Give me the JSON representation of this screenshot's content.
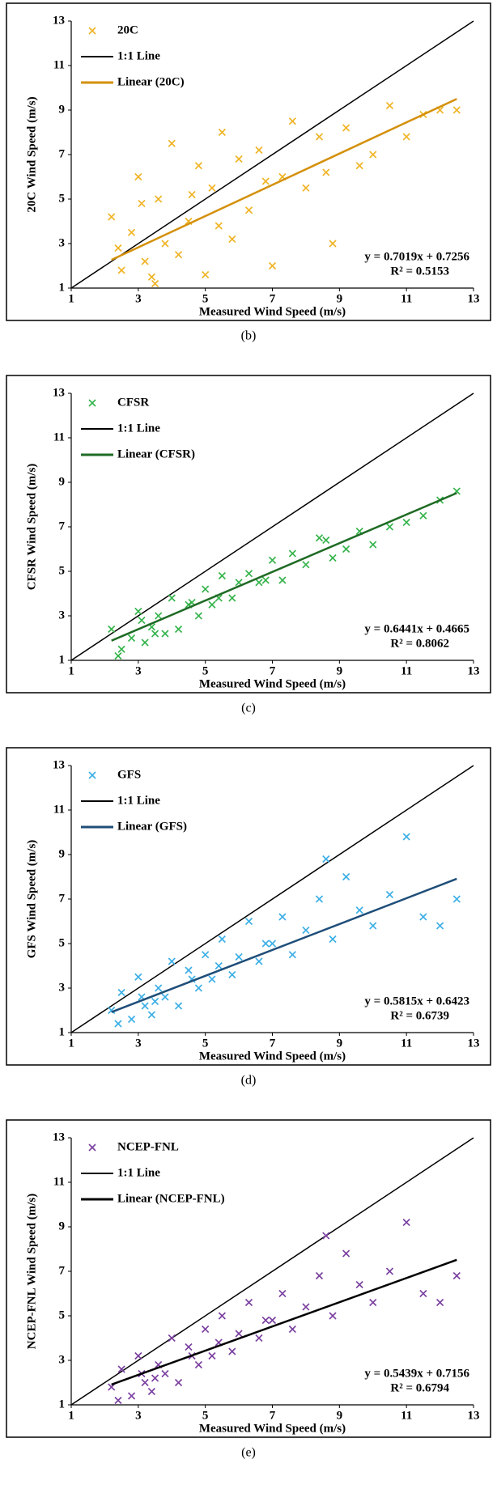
{
  "chart_data": [
    {
      "type": "scatter",
      "caption": "(b)",
      "x_label": "Measured Wind Speed (m/s)",
      "y_label": "20C Wind Speed (m/s)",
      "xlim": [
        1,
        13
      ],
      "ylim": [
        1,
        13
      ],
      "xticks": [
        1,
        3,
        5,
        7,
        9,
        11,
        13
      ],
      "yticks": [
        1,
        3,
        5,
        7,
        9,
        11,
        13
      ],
      "series": [
        {
          "name": "20C",
          "color": "#f0b323",
          "x": [
            2.2,
            2.5,
            2.8,
            3.0,
            3.2,
            3.4,
            3.6,
            3.8,
            4.0,
            4.2,
            4.5,
            4.8,
            5.0,
            5.2,
            5.5,
            5.8,
            6.0,
            6.3,
            6.6,
            7.0,
            7.3,
            7.6,
            8.0,
            8.4,
            8.8,
            9.2,
            9.6,
            10.0,
            10.5,
            11.0,
            11.5,
            12.0,
            12.5,
            2.4,
            3.1,
            4.6,
            6.8,
            8.6,
            3.5,
            5.4
          ],
          "values": [
            4.2,
            1.8,
            3.5,
            6.0,
            2.2,
            1.5,
            5.0,
            3.0,
            7.5,
            2.5,
            4.0,
            6.5,
            1.6,
            5.5,
            8.0,
            3.2,
            6.8,
            4.5,
            7.2,
            2.0,
            6.0,
            8.5,
            5.5,
            7.8,
            3.0,
            8.2,
            6.5,
            7.0,
            9.2,
            7.8,
            8.8,
            9.0,
            9.0,
            2.8,
            4.8,
            5.2,
            5.8,
            6.2,
            1.2,
            3.8
          ]
        }
      ],
      "one_to_one": {
        "name": "1:1 Line",
        "color": "#000000"
      },
      "trendline": {
        "name": "Linear (20C)",
        "color": "#d4900a",
        "slope": 0.7019,
        "intercept": 0.7256
      },
      "equation": "y = 0.7019x + 0.7256",
      "r2_label": "R² = 0.5153"
    },
    {
      "type": "scatter",
      "caption": "(c)",
      "x_label": "Measured Wind Speed (m/s)",
      "y_label": "CFSR Wind Speed (m/s)",
      "xlim": [
        1,
        13
      ],
      "ylim": [
        1,
        13
      ],
      "xticks": [
        1,
        3,
        5,
        7,
        9,
        11,
        13
      ],
      "yticks": [
        1,
        3,
        5,
        7,
        9,
        11,
        13
      ],
      "series": [
        {
          "name": "CFSR",
          "color": "#34b34a",
          "x": [
            2.2,
            2.5,
            2.8,
            3.0,
            3.2,
            3.4,
            3.6,
            3.8,
            4.0,
            4.2,
            4.5,
            4.8,
            5.0,
            5.2,
            5.5,
            5.8,
            6.0,
            6.3,
            6.6,
            7.0,
            7.3,
            7.6,
            8.0,
            8.4,
            8.8,
            9.2,
            9.6,
            10.0,
            10.5,
            11.0,
            11.5,
            12.0,
            12.5,
            2.4,
            3.1,
            4.6,
            6.8,
            8.6,
            3.5,
            5.4
          ],
          "values": [
            2.4,
            1.5,
            2.0,
            3.2,
            1.8,
            2.5,
            3.0,
            2.2,
            3.8,
            2.4,
            3.5,
            3.0,
            4.2,
            3.5,
            4.8,
            3.8,
            4.5,
            4.9,
            4.5,
            5.5,
            4.6,
            5.8,
            5.3,
            6.5,
            5.6,
            6.0,
            6.8,
            6.2,
            7.0,
            7.2,
            7.5,
            8.2,
            8.6,
            1.2,
            2.8,
            3.6,
            4.6,
            6.4,
            2.2,
            3.8
          ]
        }
      ],
      "one_to_one": {
        "name": "1:1 Line",
        "color": "#000000"
      },
      "trendline": {
        "name": "Linear (CFSR)",
        "color": "#1f6b25",
        "slope": 0.6441,
        "intercept": 0.4665
      },
      "equation": "y = 0.6441x + 0.4665",
      "r2_label": "R² = 0.8062"
    },
    {
      "type": "scatter",
      "caption": "(d)",
      "x_label": "Measured Wind Speed (m/s)",
      "y_label": "GFS Wind Speed (m/s)",
      "xlim": [
        1,
        13
      ],
      "ylim": [
        1,
        13
      ],
      "xticks": [
        1,
        3,
        5,
        7,
        9,
        11,
        13
      ],
      "yticks": [
        1,
        3,
        5,
        7,
        9,
        11,
        13
      ],
      "series": [
        {
          "name": "GFS",
          "color": "#3aaee6",
          "x": [
            2.2,
            2.5,
            2.8,
            3.0,
            3.2,
            3.4,
            3.6,
            3.8,
            4.0,
            4.2,
            4.5,
            4.8,
            5.0,
            5.2,
            5.5,
            5.8,
            6.0,
            6.3,
            6.6,
            7.0,
            7.3,
            7.6,
            8.0,
            8.4,
            8.8,
            9.2,
            9.6,
            10.0,
            10.5,
            11.0,
            11.5,
            12.0,
            12.5,
            2.4,
            3.1,
            4.6,
            6.8,
            8.6,
            3.5,
            5.4
          ],
          "values": [
            2.0,
            2.8,
            1.6,
            3.5,
            2.2,
            1.8,
            3.0,
            2.6,
            4.2,
            2.2,
            3.8,
            3.0,
            4.5,
            3.4,
            5.2,
            3.6,
            4.4,
            6.0,
            4.2,
            5.0,
            6.2,
            4.5,
            5.6,
            7.0,
            5.2,
            8.0,
            6.5,
            5.8,
            7.2,
            9.8,
            6.2,
            5.8,
            7.0,
            1.4,
            2.6,
            3.4,
            5.0,
            8.8,
            2.4,
            4.0
          ]
        }
      ],
      "one_to_one": {
        "name": "1:1 Line",
        "color": "#000000"
      },
      "trendline": {
        "name": "Linear (GFS)",
        "color": "#1f4e79",
        "slope": 0.5815,
        "intercept": 0.6423
      },
      "equation": "y = 0.5815x + 0.6423",
      "r2_label": "R² = 0.6739"
    },
    {
      "type": "scatter",
      "caption": "(e)",
      "x_label": "Measured Wind Speed (m/s)",
      "y_label": "NCEP-FNL Wind Speed (m/s)",
      "xlim": [
        1,
        13
      ],
      "ylim": [
        1,
        13
      ],
      "xticks": [
        1,
        3,
        5,
        7,
        9,
        11,
        13
      ],
      "yticks": [
        1,
        3,
        5,
        7,
        9,
        11,
        13
      ],
      "series": [
        {
          "name": "NCEP-FNL",
          "color": "#7a3fa0",
          "x": [
            2.2,
            2.5,
            2.8,
            3.0,
            3.2,
            3.4,
            3.6,
            3.8,
            4.0,
            4.2,
            4.5,
            4.8,
            5.0,
            5.2,
            5.5,
            5.8,
            6.0,
            6.3,
            6.6,
            7.0,
            7.3,
            7.6,
            8.0,
            8.4,
            8.8,
            9.2,
            9.6,
            10.0,
            10.5,
            11.0,
            11.5,
            12.0,
            12.5,
            2.4,
            3.1,
            4.6,
            6.8,
            8.6,
            3.5,
            5.4
          ],
          "values": [
            1.8,
            2.6,
            1.4,
            3.2,
            2.0,
            1.6,
            2.8,
            2.4,
            4.0,
            2.0,
            3.6,
            2.8,
            4.4,
            3.2,
            5.0,
            3.4,
            4.2,
            5.6,
            4.0,
            4.8,
            6.0,
            4.4,
            5.4,
            6.8,
            5.0,
            7.8,
            6.4,
            5.6,
            7.0,
            9.2,
            6.0,
            5.6,
            6.8,
            1.2,
            2.4,
            3.2,
            4.8,
            8.6,
            2.2,
            3.8
          ]
        }
      ],
      "one_to_one": {
        "name": "1:1 Line",
        "color": "#000000"
      },
      "trendline": {
        "name": "Linear (NCEP-FNL)",
        "color": "#000000",
        "slope": 0.5439,
        "intercept": 0.7156
      },
      "equation": "y = 0.5439x + 0.7156",
      "r2_label": "R² = 0.6794"
    }
  ]
}
